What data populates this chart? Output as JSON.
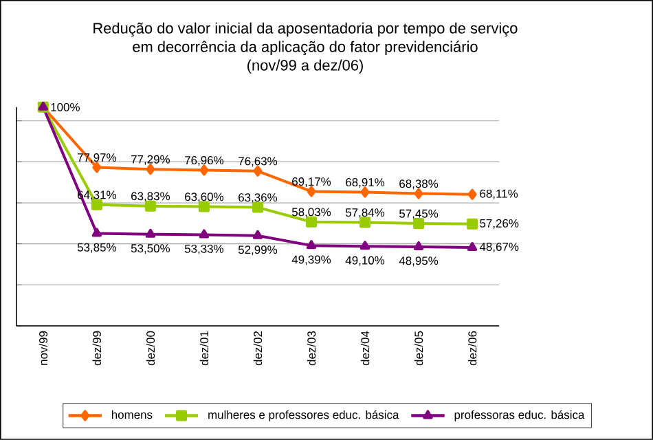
{
  "chart_data": {
    "type": "line",
    "title": "Redução do valor inicial da aposentadoria por tempo de serviço\nem decorrência da aplicação do fator previdenciário\n(nov/99 a dez/06)",
    "categories": [
      "nov/99",
      "dez/99",
      "dez/00",
      "dez/01",
      "dez/02",
      "dez/03",
      "dez/04",
      "dez/05",
      "dez/06"
    ],
    "series": [
      {
        "name": "homens",
        "color": "#ff6600",
        "marker": "diamond",
        "values": [
          100,
          77.97,
          77.29,
          76.96,
          76.63,
          69.17,
          68.91,
          68.38,
          68.11
        ],
        "value_labels": [
          null,
          "77,97%",
          "77,29%",
          "76,96%",
          "76,63%",
          "69,17%",
          "68,91%",
          "68,38%",
          "68,11%"
        ]
      },
      {
        "name": "mulheres e professores educ. básica",
        "color": "#99cc00",
        "marker": "square",
        "values": [
          100,
          64.31,
          63.83,
          63.6,
          63.36,
          58.03,
          57.84,
          57.45,
          57.26
        ],
        "value_labels": [
          null,
          "64,31%",
          "63,83%",
          "63,60%",
          "63,36%",
          "58,03%",
          "57,84%",
          "57,45%",
          "57,26%"
        ]
      },
      {
        "name": "professoras educ. básica",
        "color": "#800080",
        "marker": "triangle",
        "values": [
          100,
          53.85,
          53.5,
          53.33,
          52.99,
          49.39,
          49.1,
          48.95,
          48.67
        ],
        "value_labels": [
          "100%",
          "53,85%",
          "53,50%",
          "53,33%",
          "52,99%",
          "49,39%",
          "49,10%",
          "48,95%",
          "48,67%"
        ]
      }
    ],
    "ylim": [
      20,
      100
    ],
    "yticks": [
      {
        "value": 20,
        "label": null
      },
      {
        "value": 35,
        "label": null
      },
      {
        "value": 50,
        "label": null
      },
      {
        "value": 65,
        "label": null
      },
      {
        "value": 80,
        "label": null
      },
      {
        "value": 95,
        "label": null
      }
    ],
    "tick_labels": "x",
    "grid": "y",
    "legend": "bottom",
    "line_style": "solid"
  }
}
